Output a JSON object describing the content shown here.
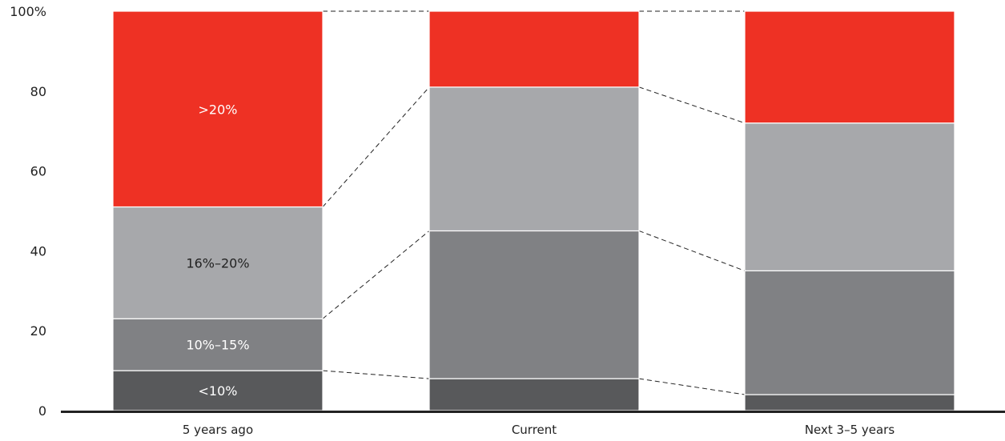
{
  "chart_data": {
    "type": "bar",
    "stacked": true,
    "categories": [
      "5 years ago",
      "Current",
      "Next 3–5 years"
    ],
    "series": [
      {
        "name": "<10%",
        "color": "#58595b",
        "values": [
          10,
          8,
          4
        ]
      },
      {
        "name": "10%–15%",
        "color": "#808184",
        "values": [
          13,
          37,
          31
        ]
      },
      {
        "name": "16%–20%",
        "color": "#a7a8ab",
        "values": [
          28,
          36,
          37
        ]
      },
      {
        "name": ">20%",
        "color": "#ee3124",
        "values": [
          49,
          19,
          28
        ]
      }
    ],
    "segment_labels_shown_for_category": "5 years ago",
    "connector_lines": "dashed",
    "yticks": [
      "0",
      "20",
      "40",
      "60",
      "80",
      "100%"
    ],
    "ylim": [
      0,
      100
    ],
    "grid": false,
    "legend": "none",
    "title": "",
    "xlabel": "",
    "ylabel": ""
  }
}
